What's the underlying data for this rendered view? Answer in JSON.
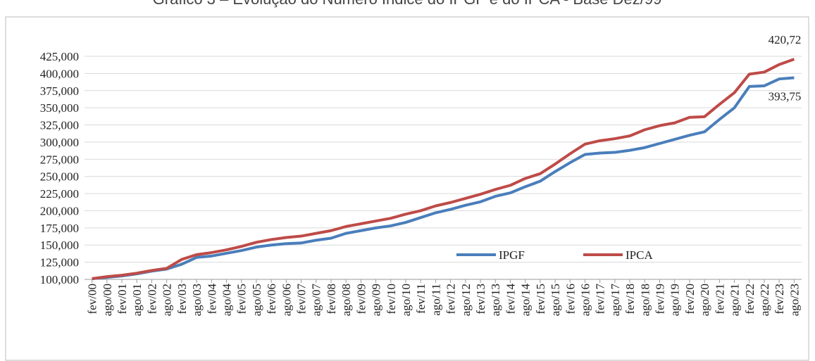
{
  "chart_data": {
    "type": "line",
    "title": "Gráfico 3 – Evolução do Número Índice do IPGF e do IPCA - Base Dez/99",
    "categories": [
      "fev/00",
      "ago/00",
      "fev/01",
      "ago/01",
      "fev/02",
      "ago/02",
      "fev/03",
      "ago/03",
      "fev/04",
      "ago/04",
      "fev/05",
      "ago/05",
      "fev/06",
      "ago/06",
      "fev/07",
      "ago/07",
      "fev/08",
      "ago/08",
      "fev/09",
      "ago/09",
      "fev/10",
      "ago/10",
      "fev/11",
      "ago/11",
      "fev/12",
      "ago/12",
      "fev/13",
      "ago/13",
      "fev/14",
      "ago/14",
      "fev/15",
      "ago/15",
      "fev/16",
      "ago/16",
      "fev/17",
      "ago/17",
      "fev/18",
      "ago/18",
      "fev/19",
      "ago/19",
      "fev/20",
      "ago/20",
      "fev/21",
      "ago/21",
      "fev/22",
      "ago/22",
      "fev/23",
      "ago/23"
    ],
    "series": [
      {
        "name": "IPGF",
        "color": "#4a7ebb",
        "values": [
          101,
          103,
          105,
          108,
          112,
          115,
          122,
          132,
          134,
          138,
          142,
          147,
          150,
          152,
          153,
          157,
          160,
          167,
          171,
          175,
          178,
          183,
          190,
          197,
          202,
          208,
          213,
          221,
          226,
          235,
          243,
          257,
          270,
          282,
          284,
          285,
          288,
          292,
          298,
          304,
          310,
          315,
          333,
          350,
          381,
          382,
          392,
          393.75
        ],
        "value_labels": [
          null,
          null,
          null,
          null,
          null,
          null,
          null,
          null,
          null,
          null,
          null,
          null,
          null,
          null,
          null,
          null,
          null,
          null,
          null,
          null,
          null,
          null,
          null,
          null,
          null,
          null,
          null,
          null,
          null,
          null,
          null,
          null,
          null,
          null,
          null,
          null,
          null,
          null,
          null,
          null,
          null,
          null,
          null,
          null,
          null,
          null,
          null,
          "393,75"
        ]
      },
      {
        "name": "IPCA",
        "color": "#be4b48",
        "values": [
          101,
          104,
          106,
          109,
          113,
          116,
          129,
          136,
          139,
          143,
          148,
          154,
          158,
          161,
          163,
          167,
          171,
          177,
          181,
          185,
          189,
          195,
          200,
          207,
          212,
          218,
          224,
          231,
          237,
          247,
          254,
          268,
          283,
          297,
          302,
          305,
          309,
          318,
          324,
          328,
          336,
          337,
          355,
          372,
          399,
          402,
          413,
          420.72
        ],
        "value_labels": [
          null,
          null,
          null,
          null,
          null,
          null,
          null,
          null,
          null,
          null,
          null,
          null,
          null,
          null,
          null,
          null,
          null,
          null,
          null,
          null,
          null,
          null,
          null,
          null,
          null,
          null,
          null,
          null,
          null,
          null,
          null,
          null,
          null,
          null,
          null,
          null,
          null,
          null,
          null,
          null,
          null,
          null,
          null,
          null,
          null,
          null,
          null,
          "420,72"
        ]
      }
    ],
    "ylim": [
      100,
      425
    ],
    "yticks": [
      {
        "value": 100,
        "label": "100,000"
      },
      {
        "value": 125,
        "label": "125,000"
      },
      {
        "value": 150,
        "label": "150,000"
      },
      {
        "value": 175,
        "label": "175,000"
      },
      {
        "value": 200,
        "label": "200,000"
      },
      {
        "value": 225,
        "label": "225,000"
      },
      {
        "value": 250,
        "label": "250,000"
      },
      {
        "value": 275,
        "label": "275,000"
      },
      {
        "value": 300,
        "label": "300,000"
      },
      {
        "value": 325,
        "label": "325,000"
      },
      {
        "value": 350,
        "label": "350,000"
      },
      {
        "value": 375,
        "label": "375,000"
      },
      {
        "value": 400,
        "label": "400,000"
      },
      {
        "value": 425,
        "label": "425,000"
      }
    ],
    "grid": true
  }
}
